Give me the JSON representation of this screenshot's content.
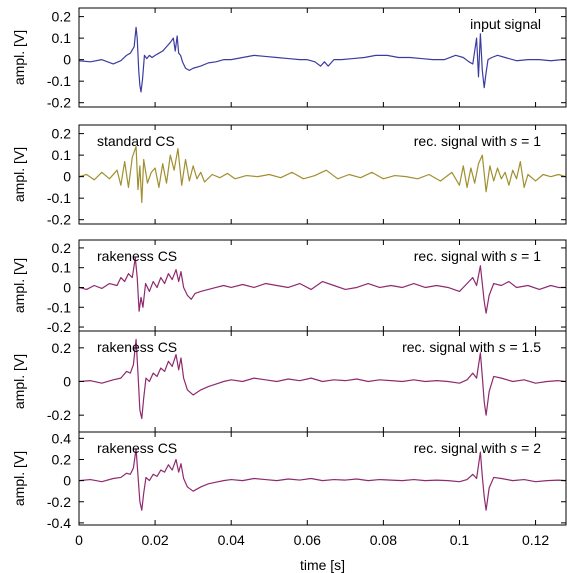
{
  "chart_data": [
    {
      "type": "line",
      "ylabel": "ampl. [V]",
      "xlim": [
        0,
        0.128
      ],
      "ylim": [
        -0.22,
        0.24
      ],
      "yticks": [
        -0.2,
        -0.1,
        0,
        0.1,
        0.2
      ],
      "yticklabels": [
        "-0.2",
        "-0.1",
        "0",
        "0.1",
        "0.2"
      ],
      "annotations": {
        "left": "",
        "right": "input signal",
        "right_var": "",
        "right_value": ""
      },
      "grid": false,
      "series": [
        {
          "color": "#3c3ca0",
          "x": [
            0,
            0.003,
            0.006,
            0.009,
            0.011,
            0.0125,
            0.0135,
            0.0145,
            0.015,
            0.0153,
            0.0157,
            0.016,
            0.0163,
            0.0167,
            0.0172,
            0.0178,
            0.0185,
            0.0192,
            0.02,
            0.021,
            0.022,
            0.023,
            0.024,
            0.0248,
            0.0253,
            0.0258,
            0.0262,
            0.0267,
            0.0272,
            0.028,
            0.029,
            0.03,
            0.032,
            0.034,
            0.036,
            0.038,
            0.04,
            0.043,
            0.046,
            0.049,
            0.052,
            0.055,
            0.058,
            0.06,
            0.062,
            0.0635,
            0.0645,
            0.0655,
            0.067,
            0.069,
            0.072,
            0.075,
            0.078,
            0.081,
            0.084,
            0.087,
            0.09,
            0.093,
            0.096,
            0.099,
            0.101,
            0.1025,
            0.1035,
            0.104,
            0.1045,
            0.105,
            0.1055,
            0.106,
            0.1065,
            0.107,
            0.1075,
            0.1085,
            0.11,
            0.112,
            0.115,
            0.118,
            0.121,
            0.124,
            0.127,
            0.128
          ],
          "y": [
            -0.005,
            -0.01,
            0.0,
            -0.02,
            -0.005,
            0.02,
            0.03,
            0.06,
            0.15,
            0.1,
            -0.05,
            -0.12,
            -0.15,
            -0.09,
            0.02,
            0.005,
            0.02,
            0.01,
            0.02,
            0.03,
            0.04,
            0.06,
            0.08,
            0.1,
            0.04,
            0.11,
            0.03,
            0.02,
            -0.01,
            -0.04,
            -0.05,
            -0.04,
            -0.03,
            -0.015,
            -0.01,
            0.0,
            0.0,
            0.01,
            0.02,
            0.015,
            0.01,
            0.005,
            0.0,
            0.0,
            -0.01,
            -0.03,
            -0.01,
            -0.03,
            0.0,
            0.0,
            0.005,
            0.01,
            0.02,
            0.02,
            0.01,
            0.01,
            0.005,
            0.0,
            0.0,
            0.02,
            0.01,
            -0.01,
            -0.02,
            0.04,
            0.1,
            -0.08,
            0.12,
            -0.05,
            -0.13,
            -0.06,
            0.0,
            0.01,
            0.02,
            0.01,
            -0.005,
            0.0,
            0.0,
            -0.005,
            0.0,
            0.0
          ]
        }
      ]
    },
    {
      "type": "line",
      "ylabel": "ampl. [V]",
      "xlim": [
        0,
        0.128
      ],
      "ylim": [
        -0.22,
        0.24
      ],
      "yticks": [
        -0.2,
        -0.1,
        0,
        0.1,
        0.2
      ],
      "yticklabels": [
        "-0.2",
        "-0.1",
        "0",
        "0.1",
        "0.2"
      ],
      "annotations": {
        "left": "standard CS",
        "right": "rec. signal with ",
        "right_var": "s",
        "right_value": " = 1"
      },
      "grid": false,
      "series": [
        {
          "color": "#a09030",
          "x": [
            0,
            0.002,
            0.004,
            0.006,
            0.008,
            0.01,
            0.011,
            0.012,
            0.013,
            0.014,
            0.015,
            0.0155,
            0.016,
            0.0165,
            0.017,
            0.018,
            0.019,
            0.02,
            0.021,
            0.022,
            0.023,
            0.024,
            0.025,
            0.026,
            0.027,
            0.028,
            0.029,
            0.03,
            0.031,
            0.032,
            0.033,
            0.035,
            0.037,
            0.039,
            0.041,
            0.044,
            0.047,
            0.05,
            0.053,
            0.056,
            0.059,
            0.062,
            0.065,
            0.068,
            0.071,
            0.074,
            0.077,
            0.08,
            0.083,
            0.086,
            0.089,
            0.092,
            0.095,
            0.098,
            0.1,
            0.101,
            0.102,
            0.103,
            0.104,
            0.105,
            0.106,
            0.107,
            0.108,
            0.109,
            0.11,
            0.111,
            0.112,
            0.113,
            0.114,
            0.115,
            0.116,
            0.117,
            0.118,
            0.12,
            0.122,
            0.124,
            0.126,
            0.128
          ],
          "y": [
            0.0,
            0.01,
            -0.015,
            0.02,
            -0.01,
            0.03,
            -0.04,
            0.07,
            -0.05,
            0.09,
            0.14,
            -0.06,
            0.05,
            -0.12,
            0.08,
            -0.03,
            0.02,
            0.04,
            -0.05,
            0.06,
            -0.03,
            0.1,
            0.03,
            0.13,
            -0.04,
            0.08,
            -0.02,
            0.05,
            -0.01,
            0.02,
            -0.025,
            0.01,
            -0.005,
            0.015,
            -0.01,
            0.005,
            0.0,
            0.01,
            -0.005,
            0.02,
            -0.01,
            0.005,
            0.03,
            -0.01,
            0.01,
            -0.005,
            0.02,
            -0.01,
            0.005,
            0.0,
            -0.01,
            0.01,
            -0.02,
            0.02,
            -0.04,
            0.05,
            -0.05,
            0.04,
            -0.03,
            0.06,
            0.1,
            -0.07,
            0.05,
            -0.02,
            0.04,
            -0.01,
            0.02,
            -0.04,
            0.03,
            -0.01,
            0.07,
            -0.05,
            0.01,
            -0.02,
            0.01,
            0.0,
            0.01,
            0.0
          ]
        }
      ]
    },
    {
      "type": "line",
      "ylabel": "ampl. [V]",
      "xlim": [
        0,
        0.128
      ],
      "ylim": [
        -0.22,
        0.24
      ],
      "yticks": [
        -0.2,
        -0.1,
        0,
        0.1,
        0.2
      ],
      "yticklabels": [
        "-0.2",
        "-0.1",
        "0",
        "0.1",
        "0.2"
      ],
      "annotations": {
        "left": "rakeness CS",
        "right": "rec. signal with ",
        "right_var": "s",
        "right_value": " = 1"
      },
      "grid": false,
      "series": [
        {
          "color": "#8e2a6e",
          "x": [
            0,
            0.002,
            0.004,
            0.006,
            0.008,
            0.01,
            0.011,
            0.012,
            0.013,
            0.014,
            0.0148,
            0.0153,
            0.0158,
            0.0163,
            0.0168,
            0.0175,
            0.0185,
            0.0195,
            0.0205,
            0.0215,
            0.0225,
            0.0235,
            0.0245,
            0.0255,
            0.0262,
            0.0268,
            0.0275,
            0.0285,
            0.0295,
            0.0305,
            0.032,
            0.034,
            0.036,
            0.038,
            0.04,
            0.043,
            0.046,
            0.049,
            0.052,
            0.055,
            0.058,
            0.061,
            0.064,
            0.067,
            0.07,
            0.073,
            0.076,
            0.079,
            0.082,
            0.085,
            0.088,
            0.091,
            0.094,
            0.097,
            0.1,
            0.102,
            0.1035,
            0.1045,
            0.1055,
            0.106,
            0.1065,
            0.107,
            0.1078,
            0.109,
            0.111,
            0.113,
            0.115,
            0.118,
            0.121,
            0.124,
            0.126,
            0.128
          ],
          "y": [
            0.0,
            -0.01,
            0.01,
            -0.005,
            0.02,
            0.01,
            0.05,
            0.03,
            0.07,
            0.05,
            0.15,
            0.05,
            -0.12,
            -0.05,
            -0.1,
            0.02,
            -0.02,
            0.03,
            0.0,
            0.05,
            0.02,
            0.07,
            0.04,
            0.09,
            0.03,
            0.08,
            0.0,
            -0.04,
            -0.06,
            -0.03,
            -0.02,
            -0.01,
            0.0,
            0.01,
            0.0,
            0.015,
            0.0,
            0.02,
            0.01,
            0.0,
            0.02,
            -0.01,
            0.03,
            0.01,
            -0.01,
            0.0,
            0.02,
            0.0,
            0.01,
            0.0,
            0.02,
            0.0,
            0.01,
            0.0,
            -0.02,
            0.02,
            0.05,
            0.01,
            0.11,
            0.02,
            -0.07,
            -0.13,
            -0.04,
            0.02,
            0.01,
            0.03,
            0.0,
            0.01,
            -0.01,
            0.01,
            0.0,
            0.0
          ]
        }
      ]
    },
    {
      "type": "line",
      "ylabel": "ampl. [V]",
      "xlim": [
        0,
        0.128
      ],
      "ylim": [
        -0.3,
        0.3
      ],
      "yticks": [
        -0.2,
        0,
        0.2
      ],
      "yticklabels": [
        "-0.2",
        "0",
        "0.2"
      ],
      "annotations": {
        "left": "rakeness CS",
        "right": "rec. signal with ",
        "right_var": "s",
        "right_value": " = 1.5"
      },
      "grid": false,
      "series": [
        {
          "color": "#8e2a6e",
          "x": [
            0,
            0.003,
            0.006,
            0.009,
            0.011,
            0.0125,
            0.0135,
            0.0143,
            0.015,
            0.0155,
            0.016,
            0.0165,
            0.017,
            0.0176,
            0.0185,
            0.0195,
            0.0205,
            0.0215,
            0.0225,
            0.0235,
            0.0245,
            0.0255,
            0.0262,
            0.0268,
            0.0275,
            0.0285,
            0.03,
            0.032,
            0.034,
            0.036,
            0.038,
            0.04,
            0.043,
            0.046,
            0.049,
            0.052,
            0.055,
            0.058,
            0.061,
            0.064,
            0.067,
            0.07,
            0.073,
            0.076,
            0.079,
            0.082,
            0.085,
            0.088,
            0.091,
            0.094,
            0.097,
            0.1,
            0.102,
            0.1035,
            0.1045,
            0.1055,
            0.106,
            0.1065,
            0.107,
            0.1078,
            0.109,
            0.111,
            0.114,
            0.117,
            0.12,
            0.123,
            0.126,
            0.128
          ],
          "y": [
            0.0,
            0.005,
            -0.01,
            0.01,
            0.02,
            0.06,
            0.05,
            0.1,
            0.25,
            0.05,
            -0.17,
            -0.22,
            -0.1,
            0.02,
            0.0,
            0.05,
            0.03,
            0.08,
            0.06,
            0.12,
            0.09,
            0.16,
            0.07,
            0.14,
            0.02,
            -0.05,
            -0.08,
            -0.05,
            -0.03,
            -0.015,
            0.0,
            0.01,
            0.0,
            0.02,
            0.01,
            0.0,
            0.015,
            0.005,
            0.02,
            0.0,
            0.01,
            0.005,
            0.015,
            0.0,
            0.01,
            0.005,
            0.0,
            0.01,
            0.0,
            0.005,
            0.0,
            -0.01,
            0.01,
            0.05,
            0.02,
            0.17,
            0.03,
            -0.12,
            -0.2,
            -0.06,
            0.03,
            0.02,
            0.0,
            0.01,
            -0.01,
            0.0,
            0.005,
            0.0
          ]
        }
      ]
    },
    {
      "type": "line",
      "ylabel": "ampl. [V]",
      "xlabel": "time [s]",
      "xlim": [
        0,
        0.128
      ],
      "ylim": [
        -0.42,
        0.46
      ],
      "yticks": [
        -0.4,
        -0.2,
        0,
        0.2,
        0.4
      ],
      "yticklabels": [
        "-0.4",
        "-0.2",
        "0",
        "0.2",
        "0.4"
      ],
      "xticks": [
        0,
        0.02,
        0.04,
        0.06,
        0.08,
        0.1,
        0.12
      ],
      "xticklabels": [
        "0",
        "0.02",
        "0.04",
        "0.06",
        "0.08",
        "0.1",
        "0.12"
      ],
      "annotations": {
        "left": "rakeness CS",
        "right": "rec. signal with ",
        "right_var": "s",
        "right_value": " = 2"
      },
      "grid": false,
      "series": [
        {
          "color": "#8e2a6e",
          "x": [
            0,
            0.003,
            0.006,
            0.009,
            0.011,
            0.0125,
            0.0135,
            0.0143,
            0.015,
            0.0155,
            0.016,
            0.0165,
            0.017,
            0.0176,
            0.0185,
            0.0195,
            0.0205,
            0.0215,
            0.0225,
            0.0235,
            0.0245,
            0.0255,
            0.0262,
            0.0268,
            0.0275,
            0.0285,
            0.03,
            0.032,
            0.034,
            0.036,
            0.038,
            0.04,
            0.043,
            0.046,
            0.049,
            0.052,
            0.055,
            0.058,
            0.061,
            0.064,
            0.067,
            0.07,
            0.073,
            0.076,
            0.079,
            0.082,
            0.085,
            0.088,
            0.091,
            0.094,
            0.097,
            0.1,
            0.102,
            0.1035,
            0.1045,
            0.1055,
            0.106,
            0.1065,
            0.107,
            0.1078,
            0.109,
            0.111,
            0.114,
            0.117,
            0.12,
            0.123,
            0.126,
            0.128
          ],
          "y": [
            0.0,
            0.01,
            -0.01,
            0.02,
            0.03,
            0.07,
            0.06,
            0.12,
            0.3,
            0.05,
            -0.2,
            -0.28,
            -0.12,
            0.03,
            0.0,
            0.06,
            0.04,
            0.1,
            0.08,
            0.15,
            0.1,
            0.2,
            0.08,
            0.16,
            0.02,
            -0.06,
            -0.1,
            -0.06,
            -0.03,
            -0.015,
            0.0,
            0.01,
            0.0,
            0.02,
            0.01,
            0.0,
            0.015,
            0.005,
            0.02,
            0.0,
            0.01,
            0.005,
            0.015,
            0.0,
            0.01,
            0.005,
            0.0,
            0.01,
            0.0,
            0.005,
            0.0,
            -0.01,
            0.01,
            0.06,
            0.02,
            0.27,
            0.04,
            -0.15,
            -0.28,
            -0.07,
            0.03,
            0.02,
            0.0,
            0.01,
            -0.01,
            0.0,
            0.005,
            0.0
          ]
        }
      ]
    }
  ]
}
